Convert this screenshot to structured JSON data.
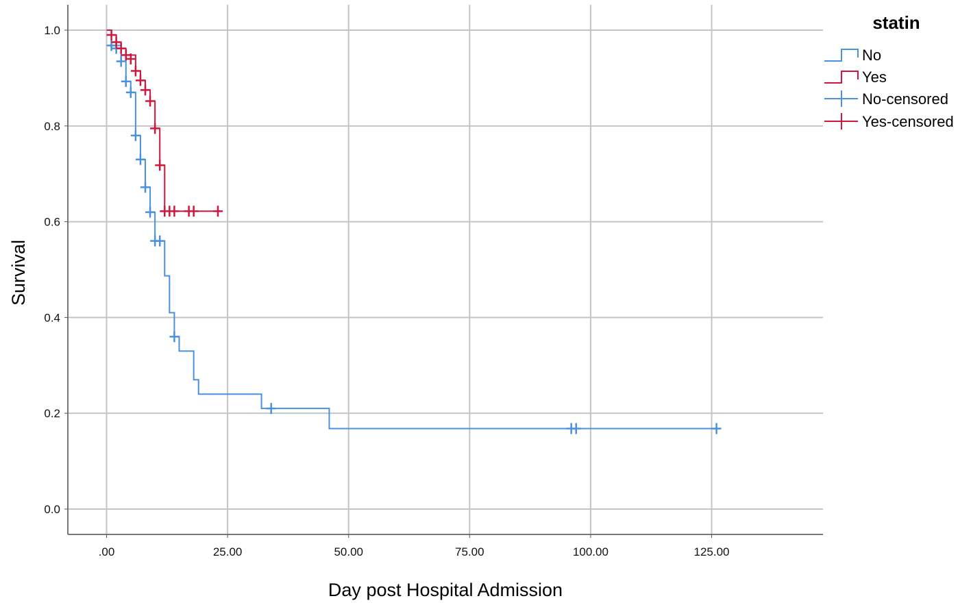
{
  "chart_data": {
    "type": "line",
    "subtype": "kaplan-meier-step",
    "xlabel": "Day post Hospital Admission",
    "ylabel": "Survival",
    "xlim": [
      -8,
      148
    ],
    "ylim": [
      -0.053,
      1.053
    ],
    "x_ticks": [
      0,
      25,
      50,
      75,
      100,
      125
    ],
    "x_tick_labels": [
      ".00",
      "25.00",
      "50.00",
      "75.00",
      "100.00",
      "125.00"
    ],
    "y_ticks": [
      0,
      0.2,
      0.4,
      0.6,
      0.8,
      1.0
    ],
    "y_tick_labels": [
      "0.0",
      "0.2",
      "0.4",
      "0.6",
      "0.8",
      "1.0"
    ],
    "grid": true,
    "legend": {
      "title": "statin",
      "position": "top-right",
      "entries": [
        {
          "label": "No",
          "kind": "step",
          "color": "#4a90e2"
        },
        {
          "label": "Yes",
          "kind": "step",
          "color": "#d0163d"
        },
        {
          "label": "No-censored",
          "kind": "censor",
          "color": "#4a90e2"
        },
        {
          "label": "Yes-censored",
          "kind": "censor",
          "color": "#d0163d"
        }
      ]
    },
    "series": [
      {
        "name": "No",
        "color": "#4a90e2",
        "steps": [
          [
            0,
            1.0
          ],
          [
            1,
            0.968
          ],
          [
            3,
            0.935
          ],
          [
            4,
            0.893
          ],
          [
            5,
            0.87
          ],
          [
            6,
            0.78
          ],
          [
            7,
            0.73
          ],
          [
            8,
            0.672
          ],
          [
            9,
            0.62
          ],
          [
            10,
            0.56
          ],
          [
            12,
            0.487
          ],
          [
            13,
            0.41
          ],
          [
            14,
            0.36
          ],
          [
            15,
            0.33
          ],
          [
            18,
            0.27
          ],
          [
            19,
            0.24
          ],
          [
            32,
            0.21
          ],
          [
            46,
            0.168
          ]
        ],
        "end_x": 126,
        "censored": [
          [
            1,
            0.968
          ],
          [
            2,
            0.962
          ],
          [
            3,
            0.935
          ],
          [
            4,
            0.893
          ],
          [
            5,
            0.87
          ],
          [
            6,
            0.78
          ],
          [
            7,
            0.73
          ],
          [
            8,
            0.672
          ],
          [
            9,
            0.62
          ],
          [
            10,
            0.56
          ],
          [
            11,
            0.56
          ],
          [
            14,
            0.36
          ],
          [
            34,
            0.21
          ],
          [
            96,
            0.168
          ],
          [
            97,
            0.168
          ],
          [
            126,
            0.168
          ]
        ]
      },
      {
        "name": "Yes",
        "color": "#d0163d",
        "steps": [
          [
            0,
            1.0
          ],
          [
            1,
            0.99
          ],
          [
            2,
            0.975
          ],
          [
            3,
            0.962
          ],
          [
            4,
            0.948
          ],
          [
            6,
            0.915
          ],
          [
            7,
            0.895
          ],
          [
            8,
            0.875
          ],
          [
            9,
            0.852
          ],
          [
            10,
            0.795
          ],
          [
            11,
            0.718
          ],
          [
            12,
            0.622
          ]
        ],
        "end_x": 23,
        "censored": [
          [
            1,
            0.99
          ],
          [
            2,
            0.975
          ],
          [
            3,
            0.962
          ],
          [
            4,
            0.948
          ],
          [
            5,
            0.94
          ],
          [
            6,
            0.915
          ],
          [
            7,
            0.895
          ],
          [
            8,
            0.875
          ],
          [
            9,
            0.852
          ],
          [
            10,
            0.795
          ],
          [
            11,
            0.718
          ],
          [
            12,
            0.622
          ],
          [
            13,
            0.622
          ],
          [
            14,
            0.622
          ],
          [
            17,
            0.622
          ],
          [
            18,
            0.622
          ],
          [
            23,
            0.622
          ]
        ]
      }
    ]
  }
}
